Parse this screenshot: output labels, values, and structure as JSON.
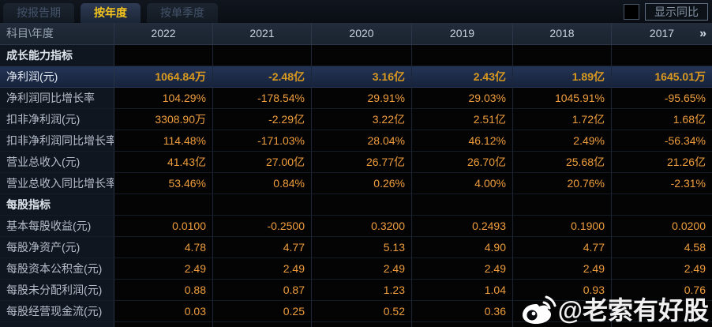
{
  "tab_bar": {
    "tabs": [
      {
        "label": "按报告期",
        "active": false
      },
      {
        "label": "按年度",
        "active": true
      },
      {
        "label": "按单季度",
        "active": false
      }
    ],
    "show_yoy": {
      "label": "显示同比",
      "checked": false
    }
  },
  "table": {
    "corner_label": "科目\\年度",
    "years": [
      "2022",
      "2021",
      "2020",
      "2019",
      "2018",
      "2017"
    ],
    "more_columns_icon": "»",
    "rows": [
      {
        "type": "section",
        "label": "成长能力指标",
        "values": [
          "",
          "",
          "",
          "",
          "",
          ""
        ]
      },
      {
        "type": "highlight",
        "label": "净利润(元)",
        "values": [
          "1064.84万",
          "-2.48亿",
          "3.16亿",
          "2.43亿",
          "1.89亿",
          "1645.01万"
        ]
      },
      {
        "type": "data",
        "label": "净利润同比增长率",
        "values": [
          "104.29%",
          "-178.54%",
          "29.91%",
          "29.03%",
          "1045.91%",
          "-95.65%"
        ]
      },
      {
        "type": "data",
        "label": "扣非净利润(元)",
        "values": [
          "3308.90万",
          "-2.29亿",
          "3.22亿",
          "2.51亿",
          "1.72亿",
          "1.68亿"
        ]
      },
      {
        "type": "data",
        "label": "扣非净利润同比增长率",
        "values": [
          "114.48%",
          "-171.03%",
          "28.04%",
          "46.12%",
          "2.49%",
          "-56.34%"
        ]
      },
      {
        "type": "data",
        "label": "营业总收入(元)",
        "values": [
          "41.43亿",
          "27.00亿",
          "26.77亿",
          "26.70亿",
          "25.68亿",
          "21.26亿"
        ]
      },
      {
        "type": "data",
        "label": "营业总收入同比增长率",
        "values": [
          "53.46%",
          "0.84%",
          "0.26%",
          "4.00%",
          "20.76%",
          "-2.31%"
        ]
      },
      {
        "type": "section",
        "label": "每股指标",
        "values": [
          "",
          "",
          "",
          "",
          "",
          ""
        ]
      },
      {
        "type": "data",
        "label": "基本每股收益(元)",
        "values": [
          "0.0100",
          "-0.2500",
          "0.3200",
          "0.2493",
          "0.1900",
          "0.0200"
        ]
      },
      {
        "type": "data",
        "label": "每股净资产(元)",
        "values": [
          "4.78",
          "4.77",
          "5.13",
          "4.90",
          "4.77",
          "4.58"
        ]
      },
      {
        "type": "data",
        "label": "每股资本公积金(元)",
        "values": [
          "2.49",
          "2.49",
          "2.49",
          "2.49",
          "2.49",
          "2.49"
        ]
      },
      {
        "type": "data",
        "label": "每股未分配利润(元)",
        "values": [
          "0.88",
          "0.87",
          "1.23",
          "1.04",
          "0.93",
          "0.76"
        ]
      },
      {
        "type": "data",
        "label": "每股经营现金流(元)",
        "values": [
          "0.03",
          "0.25",
          "0.52",
          "0.36",
          "",
          ""
        ]
      }
    ]
  },
  "watermark": {
    "handle": "@老索有好股"
  },
  "colors": {
    "accent_gold": "#f5c41c",
    "value_orange": "#ef9d3c",
    "highlight_value_gold": "#d9991f",
    "highlight_row_bg": "#1d2b47",
    "header_bg": "#1d2632",
    "label_cell_bg": "#10161f",
    "value_cell_bg": "#040404"
  }
}
